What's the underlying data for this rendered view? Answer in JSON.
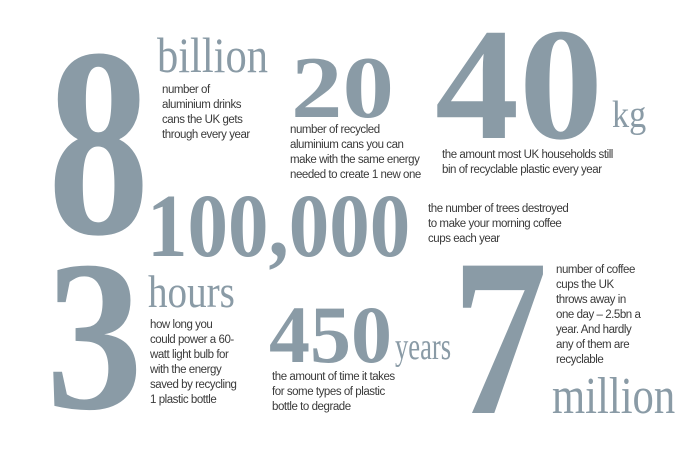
{
  "accent_color": "#8a9ba6",
  "stats": [
    {
      "number": "8",
      "unit": "billion",
      "text": "number of\naluminium drinks\ncans the UK gets\nthrough every year"
    },
    {
      "number": "20",
      "unit": "",
      "text": "number of recycled\naluminium cans you can\nmake with the same energy\nneeded to create 1 new one"
    },
    {
      "number": "40",
      "unit": "kg",
      "text": "the amount most UK households still\nbin of recyclable plastic every year"
    },
    {
      "number": "100,000",
      "unit": "",
      "text": "the number of trees destroyed\nto make your morning coffee\ncups each year"
    },
    {
      "number": "3",
      "unit": "hours",
      "text": "how long you\ncould power a 60-\nwatt light bulb for\nwith the energy\nsaved by recycling\n1 plastic bottle"
    },
    {
      "number": "450",
      "unit": "years",
      "text": "the amount of time it takes\nfor some types of plastic\nbottle to degrade"
    },
    {
      "number": "7",
      "unit": "million",
      "text": "number of coffee\ncups the UK\nthrows away in\none day – 2.5bn a\nyear. And hardly\nany of them are\nrecyclable"
    }
  ]
}
